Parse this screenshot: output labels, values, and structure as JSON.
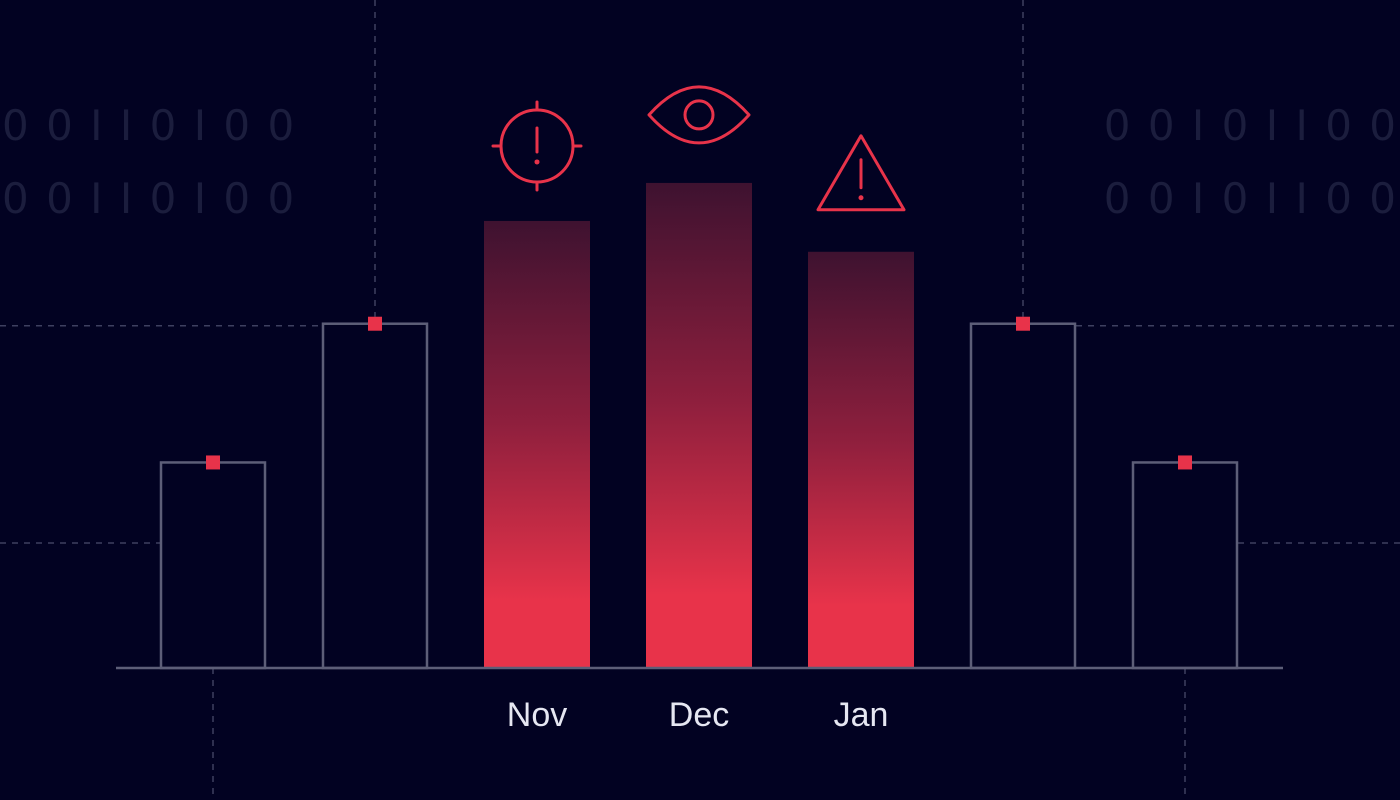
{
  "colors": {
    "background": "#020222",
    "outline": "#5d5e78",
    "accent": "#e8334a",
    "guide": "#3e4060",
    "label": "#e6e7f2",
    "binary_text": "#1b1d3d",
    "gradient_top": "#3e1230"
  },
  "binary_text": {
    "left": [
      "0 0 I I 0 I 0 0",
      "0 0 I I 0 I 0 0"
    ],
    "right": [
      "0 0 I 0 I I 0 0",
      "0 0 I 0 I I 0 0"
    ]
  },
  "chart_data": {
    "type": "bar",
    "title": "",
    "xlabel": "",
    "ylabel": "",
    "categories": [
      "",
      "",
      "Nov",
      "Dec",
      "Jan",
      "",
      ""
    ],
    "values": [
      2.0,
      3.35,
      4.35,
      4.72,
      4.05,
      3.35,
      2.0
    ],
    "ylim": [
      0,
      6.5
    ],
    "highlighted": [
      false,
      false,
      true,
      true,
      true,
      false,
      false
    ],
    "icons": [
      "",
      "",
      "crosshair-alert-icon",
      "eye-icon",
      "warning-triangle-icon",
      "",
      ""
    ],
    "markers": [
      true,
      true,
      false,
      false,
      false,
      true,
      true
    ],
    "grid": false
  }
}
